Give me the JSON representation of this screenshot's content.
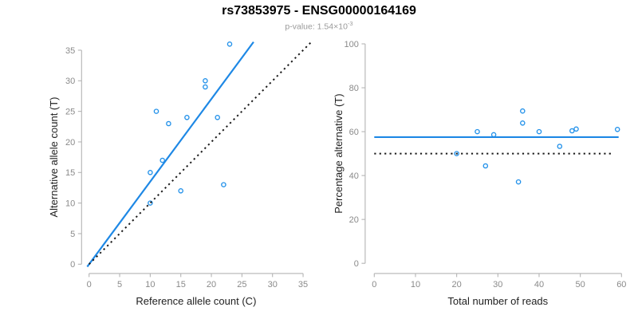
{
  "header": {
    "title": "rs73853975 - ENSG00000164169",
    "pvalue_text": "p-value: 1.54×10",
    "pvalue_exponent": "-3"
  },
  "colors": {
    "accent_blue": "#1e88e5",
    "point_blue": "#2492ea",
    "dotted_black": "#1a1a1a",
    "axis_gray": "#b4b4b4",
    "tick_text_gray": "#8a8a8a"
  },
  "chart_data": [
    {
      "type": "scatter",
      "name": "allele-counts",
      "xlabel": "Reference allele count (C)",
      "ylabel": "Alternative allele count (T)",
      "xlim": [
        0,
        35
      ],
      "ylim": [
        0,
        35
      ],
      "xticks": [
        0,
        5,
        10,
        15,
        20,
        25,
        30,
        35
      ],
      "yticks": [
        0,
        5,
        10,
        15,
        20,
        25,
        30,
        35
      ],
      "grid": false,
      "legend": "none",
      "points": [
        [
          10,
          10
        ],
        [
          10,
          15
        ],
        [
          11,
          25
        ],
        [
          12,
          17
        ],
        [
          13,
          23
        ],
        [
          15,
          12
        ],
        [
          16,
          24
        ],
        [
          19,
          29
        ],
        [
          19,
          30
        ],
        [
          21,
          24
        ],
        [
          22,
          13
        ],
        [
          23,
          36
        ]
      ],
      "lines": [
        {
          "name": "fit",
          "x1": -0.3,
          "y1": -0.41,
          "x2": 26.9,
          "y2": 36.35,
          "style": "solid",
          "color": "#1e88e5"
        },
        {
          "name": "identity",
          "x1": 0,
          "y1": 0,
          "x2": 36.3,
          "y2": 36.3,
          "style": "dotted",
          "color": "#1a1a1a"
        }
      ]
    },
    {
      "type": "scatter",
      "name": "percentage-vs-reads",
      "xlabel": "Total number of reads",
      "ylabel": "Percentage alternative (T)",
      "xlim": [
        0,
        60
      ],
      "ylim": [
        0,
        100
      ],
      "xticks": [
        0,
        10,
        20,
        30,
        40,
        50,
        60
      ],
      "yticks": [
        0,
        20,
        40,
        60,
        80,
        100
      ],
      "grid": false,
      "legend": "none",
      "points": [
        [
          20,
          50
        ],
        [
          25,
          60
        ],
        [
          27,
          44.4
        ],
        [
          29,
          58.6
        ],
        [
          35,
          37.1
        ],
        [
          36,
          63.9
        ],
        [
          36,
          69.4
        ],
        [
          40,
          60
        ],
        [
          45,
          53.3
        ],
        [
          48,
          60.4
        ],
        [
          49,
          61.2
        ],
        [
          59,
          61
        ]
      ],
      "lines": [
        {
          "name": "mean",
          "x1": 0,
          "y1": 57.5,
          "x2": 59.3,
          "y2": 57.5,
          "style": "solid",
          "color": "#1e88e5"
        },
        {
          "name": "reference-50pct",
          "x1": 0,
          "y1": 50,
          "x2": 58,
          "y2": 50,
          "style": "dotted",
          "color": "#1a1a1a"
        }
      ]
    }
  ]
}
